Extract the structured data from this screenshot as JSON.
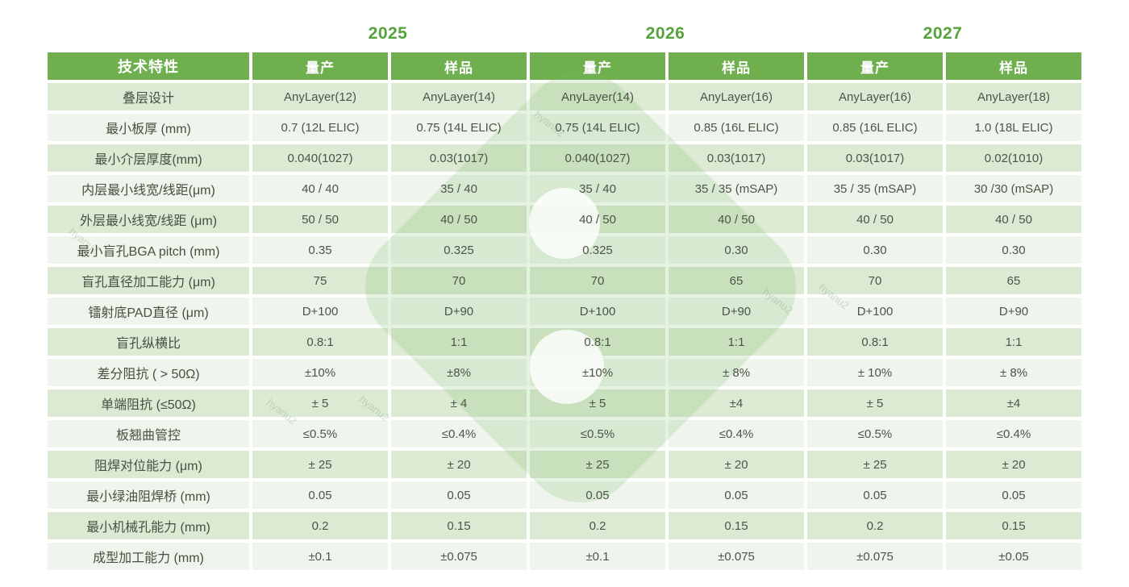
{
  "colors": {
    "header_bg": "#6faf4e",
    "year_text": "#54a33c",
    "row_tint_bg": "#dcead3",
    "row_light_bg": "#eff5ec",
    "cell_text": "#4a5547",
    "header_text": "#ffffff",
    "watermark_green": "#7fba6a"
  },
  "years": [
    "2025",
    "2026",
    "2027"
  ],
  "watermark": {
    "text": "hyanu2"
  },
  "table": {
    "header": [
      "技术特性",
      "量产",
      "样品",
      "量产",
      "样品",
      "量产",
      "样品"
    ],
    "rows": [
      {
        "label": "叠层设计",
        "values": [
          "AnyLayer(12)",
          "AnyLayer(14)",
          "AnyLayer(14)",
          "AnyLayer(16)",
          "AnyLayer(16)",
          "AnyLayer(18)"
        ]
      },
      {
        "label": "最小板厚 (mm)",
        "values": [
          "0.7 (12L ELIC)",
          "0.75 (14L ELIC)",
          "0.75 (14L ELIC)",
          "0.85 (16L ELIC)",
          "0.85 (16L ELIC)",
          "1.0 (18L ELIC)"
        ]
      },
      {
        "label": "最小介层厚度(mm)",
        "values": [
          "0.040(1027)",
          "0.03(1017)",
          "0.040(1027)",
          "0.03(1017)",
          "0.03(1017)",
          "0.02(1010)"
        ]
      },
      {
        "label": "内层最小线宽/线距(μm)",
        "values": [
          "40 / 40",
          "35 / 40",
          "35 / 40",
          "35 / 35 (mSAP)",
          "35 / 35 (mSAP)",
          "30 /30 (mSAP)"
        ]
      },
      {
        "label": "外层最小线宽/线距 (μm)",
        "values": [
          "50 / 50",
          "40 / 50",
          "40 / 50",
          "40 / 50",
          "40 / 50",
          "40 / 50"
        ]
      },
      {
        "label": "最小盲孔BGA pitch (mm)",
        "values": [
          "0.35",
          "0.325",
          "0.325",
          "0.30",
          "0.30",
          "0.30"
        ]
      },
      {
        "label": "盲孔直径加工能力 (μm)",
        "values": [
          "75",
          "70",
          "70",
          "65",
          "70",
          "65"
        ]
      },
      {
        "label": "镭射底PAD直径 (μm)",
        "values": [
          "D+100",
          "D+90",
          "D+100",
          "D+90",
          "D+100",
          "D+90"
        ]
      },
      {
        "label": "盲孔纵横比",
        "values": [
          "0.8:1",
          "1:1",
          "0.8:1",
          "1:1",
          "0.8:1",
          "1:1"
        ]
      },
      {
        "label": "差分阻抗 ( > 50Ω)",
        "values": [
          "±10%",
          "±8%",
          "±10%",
          "± 8%",
          "± 10%",
          "± 8%"
        ]
      },
      {
        "label": "单端阻抗 (≤50Ω)",
        "values": [
          "± 5",
          "± 4",
          "± 5",
          "±4",
          "± 5",
          "±4"
        ]
      },
      {
        "label": "板翘曲管控",
        "values": [
          "≤0.5%",
          "≤0.4%",
          "≤0.5%",
          "≤0.4%",
          "≤0.5%",
          "≤0.4%"
        ]
      },
      {
        "label": "阻焊对位能力 (μm)",
        "values": [
          "± 25",
          "± 20",
          "± 25",
          "± 20",
          "± 25",
          "± 20"
        ]
      },
      {
        "label": "最小绿油阻焊桥 (mm)",
        "values": [
          "0.05",
          "0.05",
          "0.05",
          "0.05",
          "0.05",
          "0.05"
        ]
      },
      {
        "label": "最小机械孔能力 (mm)",
        "values": [
          "0.2",
          "0.15",
          "0.2",
          "0.15",
          "0.2",
          "0.15"
        ]
      },
      {
        "label": "成型加工能力 (mm)",
        "values": [
          "±0.1",
          "±0.075",
          "±0.1",
          "±0.075",
          "±0.075",
          "±0.05"
        ]
      }
    ]
  }
}
